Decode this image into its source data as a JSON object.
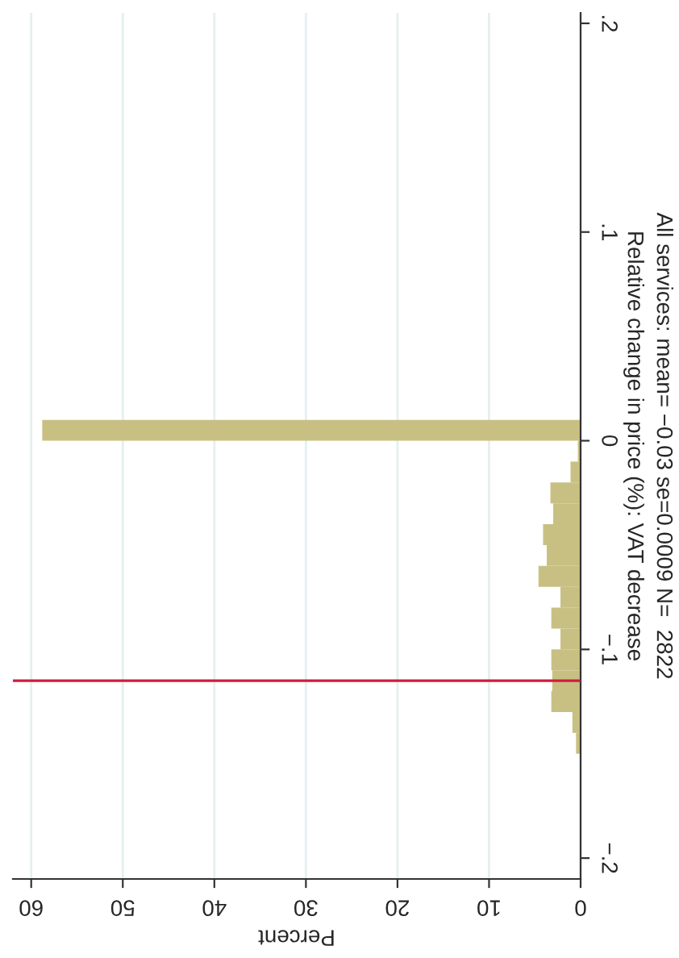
{
  "chart_data": {
    "type": "histogram",
    "orientation": "horizontal",
    "xlabel": "Percent",
    "ylabel": "Relative change in price (%): VAT decrease",
    "annotations": [
      "All services: mean= −0.03 se=0.0009 N=  2822"
    ],
    "bins": [
      -0.2,
      -0.19,
      -0.18,
      -0.17,
      -0.16,
      -0.15,
      -0.14,
      -0.13,
      -0.12,
      -0.11,
      -0.1,
      -0.09,
      -0.08,
      -0.07,
      -0.06,
      -0.05,
      -0.04,
      -0.03,
      -0.02,
      -0.01,
      0,
      0.01,
      0.02,
      0.03,
      0.04,
      0.05,
      0.06,
      0.07,
      0.08,
      0.09,
      0.1,
      0.11,
      0.12,
      0.13,
      0.14,
      0.15,
      0.16,
      0.17,
      0.18,
      0.19,
      0.2
    ],
    "values": [
      null,
      0,
      0,
      0,
      null,
      0.5,
      0.9,
      3.2,
      3.1,
      3.2,
      2.2,
      3.2,
      2.2,
      4.6,
      3.7,
      4.1,
      3.0,
      3.3,
      1.1,
      0.3,
      58.8,
      0,
      0,
      0,
      null,
      0,
      0,
      0,
      0,
      0,
      0,
      null,
      0,
      0,
      0,
      0,
      0,
      0,
      0,
      null
    ],
    "color": "#c8c083",
    "xlim": [
      62,
      0
    ],
    "xticks": [
      0,
      10,
      20,
      30,
      40,
      50,
      60
    ],
    "ylim": [
      -0.21,
      0.205
    ],
    "yticks": [
      {
        "value": -0.2,
        "label": "−.2"
      },
      {
        "value": -0.1,
        "label": "−.1"
      },
      {
        "value": 0,
        "label": "0"
      },
      {
        "value": 0.1,
        "label": ".1"
      },
      {
        "value": 0.2,
        "label": ".2"
      }
    ],
    "ref_lines": [
      {
        "axis": "y",
        "value": -0.115,
        "color": "#d01c3c"
      }
    ],
    "grid": "x"
  }
}
